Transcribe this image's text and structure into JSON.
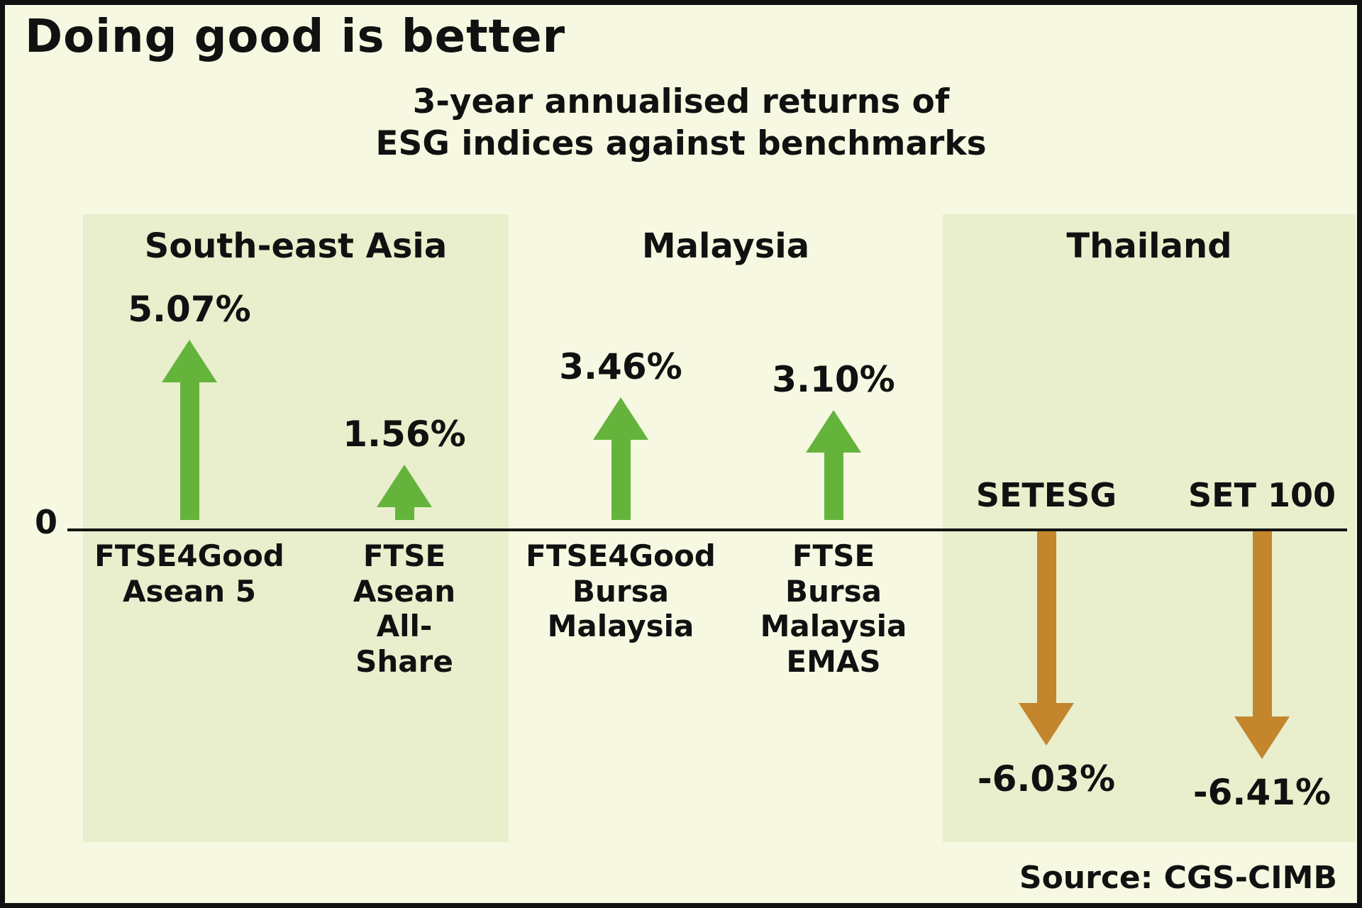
{
  "meta": {
    "title": "Doing good is better",
    "subtitle": "3-year annualised returns of\nESG indices against benchmarks",
    "source": "Source: CGS-CIMB",
    "zero_label": "0"
  },
  "chart_data": {
    "type": "bar",
    "title": "3-year annualised returns of ESG indices against benchmarks",
    "unit": "%",
    "zero_baseline": true,
    "legend": "none",
    "colors": {
      "positive": "#64b43c",
      "negative": "#c3862d",
      "band": "#e9eecd",
      "background": "#f7f8e2"
    },
    "groups": [
      "South-east Asia",
      "Malaysia",
      "Thailand"
    ],
    "bars": [
      {
        "region": "South-east Asia",
        "index": "FTSE4Good Asean 5",
        "index_label": "FTSE4Good\nAsean 5",
        "value": 5.07,
        "value_label": "5.07%"
      },
      {
        "region": "South-east Asia",
        "index": "FTSE Asean All-Share",
        "index_label": "FTSE\nAsean\nAll-\nShare",
        "value": 1.56,
        "value_label": "1.56%"
      },
      {
        "region": "Malaysia",
        "index": "FTSE4Good Bursa Malaysia",
        "index_label": "FTSE4Good\nBursa\nMalaysia",
        "value": 3.46,
        "value_label": "3.46%"
      },
      {
        "region": "Malaysia",
        "index": "FTSE Bursa Malaysia EMAS",
        "index_label": "FTSE\nBursa\nMalaysia\nEMAS",
        "value": 3.1,
        "value_label": "3.10%"
      },
      {
        "region": "Thailand",
        "index": "SETESG",
        "index_label": "SETESG",
        "value": -6.03,
        "value_label": "-6.03%"
      },
      {
        "region": "Thailand",
        "index": "SET 100",
        "index_label": "SET 100",
        "value": -6.41,
        "value_label": "-6.41%"
      }
    ]
  }
}
